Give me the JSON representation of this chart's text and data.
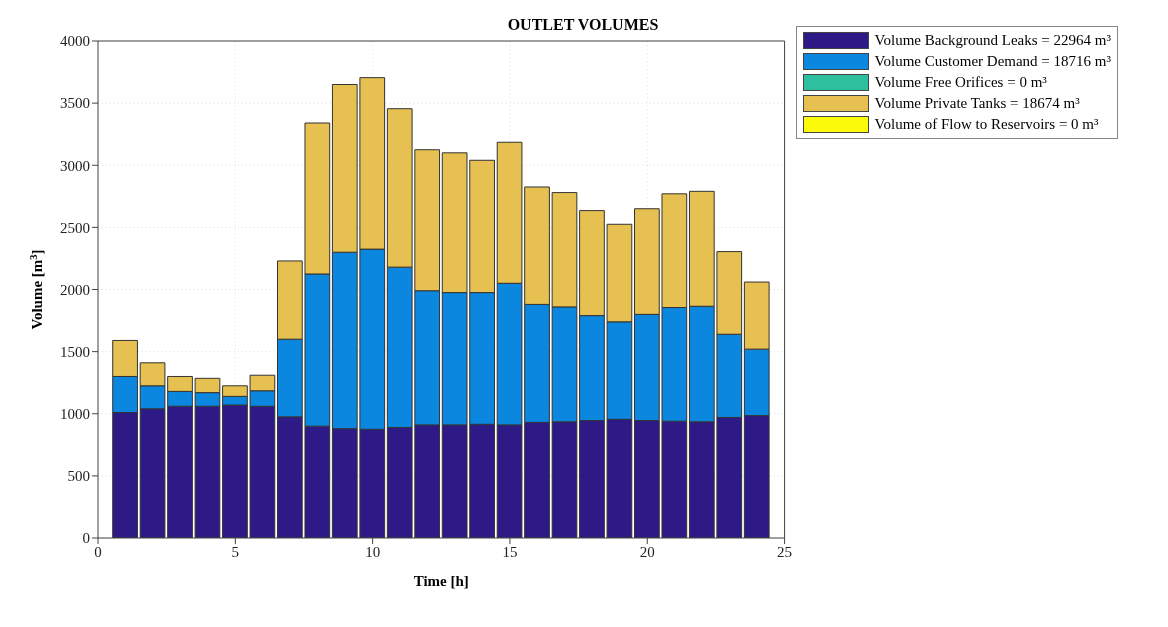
{
  "chart_data": {
    "type": "bar",
    "title": "OUTLET VOLUMES",
    "xlabel": "Time [h]",
    "ylabel": "Volume [m$^{3}$]",
    "stacked": true,
    "grid": true,
    "legend": "top right",
    "x": [
      1,
      2,
      3,
      4,
      5,
      6,
      7,
      8,
      9,
      10,
      11,
      12,
      13,
      14,
      15,
      16,
      17,
      18,
      19,
      20,
      21,
      22,
      23,
      24
    ],
    "xlim": [
      0,
      25
    ],
    "xticks": [
      0,
      5,
      10,
      15,
      20,
      25
    ],
    "ylim": [
      0,
      4000
    ],
    "yticks": [
      0,
      500,
      1000,
      1500,
      2000,
      2500,
      3000,
      3500,
      4000
    ],
    "series": [
      {
        "name": "Volume Background Leaks = 22964 m³",
        "color": "#2e1a87",
        "values": [
          1010,
          1040,
          1060,
          1060,
          1070,
          1060,
          975,
          900,
          880,
          875,
          890,
          910,
          910,
          915,
          910,
          930,
          935,
          945,
          955,
          945,
          940,
          935,
          970,
          985
        ]
      },
      {
        "name": "Volume Customer Demand = 18716 m³",
        "color": "#0b87df",
        "values": [
          290,
          185,
          120,
          110,
          70,
          125,
          625,
          1225,
          1420,
          1450,
          1290,
          1080,
          1065,
          1060,
          1140,
          950,
          925,
          845,
          785,
          855,
          915,
          930,
          670,
          535
        ]
      },
      {
        "name": "Volume Free Orifices = 0 m³",
        "color": "#2ebf9f",
        "values": [
          0,
          0,
          0,
          0,
          0,
          0,
          0,
          0,
          0,
          0,
          0,
          0,
          0,
          0,
          0,
          0,
          0,
          0,
          0,
          0,
          0,
          0,
          0,
          0
        ]
      },
      {
        "name": "Volume Private Tanks = 18674 m³",
        "color": "#e6c050",
        "values": [
          290,
          185,
          120,
          115,
          85,
          125,
          630,
          1215,
          1350,
          1380,
          1275,
          1135,
          1125,
          1065,
          1135,
          945,
          920,
          845,
          785,
          850,
          915,
          925,
          665,
          540
        ]
      },
      {
        "name": "Volume of Flow to Reservoirs = 0 m³",
        "color": "#fafa0a",
        "values": [
          0,
          0,
          0,
          0,
          0,
          0,
          0,
          0,
          0,
          0,
          0,
          0,
          0,
          0,
          0,
          0,
          0,
          0,
          0,
          0,
          0,
          0,
          0,
          0
        ]
      }
    ]
  }
}
